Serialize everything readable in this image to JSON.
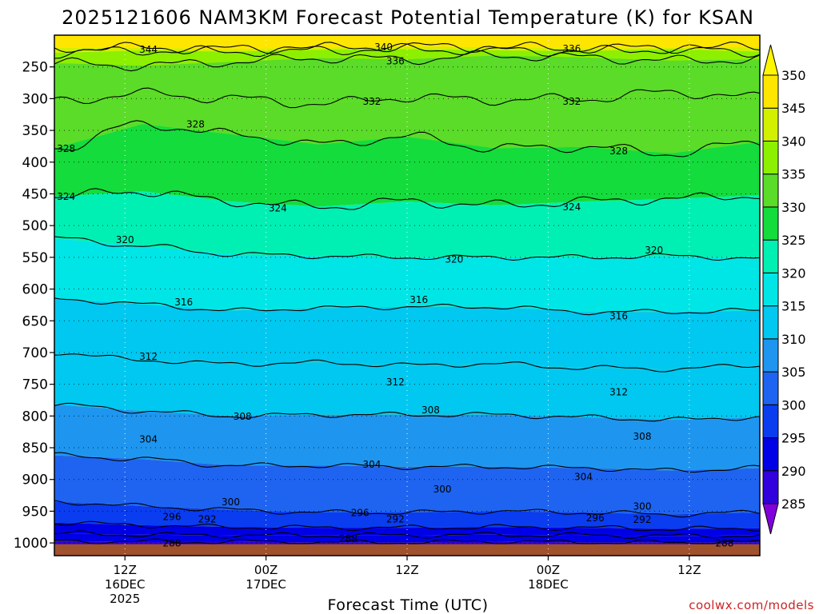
{
  "chart_data": {
    "type": "heatmap",
    "title": "2025121606 NAM3KM Forecast Potential Temperature (K) for KSAN",
    "xlabel": "Forecast Time (UTC)",
    "ylabel": "",
    "credit": "coolwx.com/models",
    "y_ticks": [
      "250",
      "300",
      "350",
      "400",
      "450",
      "500",
      "550",
      "600",
      "650",
      "700",
      "750",
      "800",
      "850",
      "900",
      "950",
      "1000"
    ],
    "ylim": [
      200,
      1020
    ],
    "x_ticks": [
      {
        "hour": 6,
        "lines": [
          "12Z",
          "16DEC",
          "2025"
        ]
      },
      {
        "hour": 18,
        "lines": [
          "00Z",
          "17DEC"
        ]
      },
      {
        "hour": 30,
        "lines": [
          "12Z",
          ""
        ]
      },
      {
        "hour": 42,
        "lines": [
          "00Z",
          "18DEC"
        ]
      },
      {
        "hour": 54,
        "lines": [
          "12Z",
          ""
        ]
      }
    ],
    "xlim": [
      0,
      60
    ],
    "colorbar": {
      "levels": [
        "285",
        "290",
        "295",
        "300",
        "305",
        "310",
        "315",
        "320",
        "325",
        "330",
        "335",
        "340",
        "345",
        "350"
      ],
      "colors": [
        "#8200dc",
        "#3200dc",
        "#0000e6",
        "#0a3cf0",
        "#1e64f0",
        "#1e96f0",
        "#00c8f0",
        "#00e6e6",
        "#00f0b4",
        "#14dc3c",
        "#5adc28",
        "#8cf000",
        "#d2f000",
        "#ffe600",
        "#fff700"
      ]
    },
    "isentropes": [
      {
        "theta": 344,
        "p": [
          220,
          220,
          222,
          220,
          218,
          219,
          221,
          220,
          219
        ]
      },
      {
        "theta": 340,
        "p": [
          228,
          224,
          226,
          223,
          222,
          224,
          225,
          222,
          226
        ]
      },
      {
        "theta": 336,
        "p": [
          244,
          248,
          242,
          236,
          238,
          232,
          235,
          240,
          238
        ]
      },
      {
        "theta": 332,
        "p": [
          304,
          292,
          300,
          308,
          298,
          302,
          300,
          290,
          298
        ]
      },
      {
        "theta": 328,
        "p": [
          378,
          340,
          356,
          372,
          360,
          378,
          376,
          386,
          368
        ]
      },
      {
        "theta": 324,
        "p": [
          454,
          446,
          462,
          470,
          462,
          468,
          462,
          458,
          452
        ]
      },
      {
        "theta": 320,
        "p": [
          520,
          532,
          545,
          548,
          550,
          550,
          550,
          548,
          552
        ]
      },
      {
        "theta": 316,
        "p": [
          615,
          624,
          634,
          630,
          628,
          628,
          636,
          636,
          634
        ]
      },
      {
        "theta": 312,
        "p": [
          700,
          712,
          718,
          716,
          720,
          718,
          724,
          726,
          720
        ]
      },
      {
        "theta": 308,
        "p": [
          782,
          792,
          800,
          798,
          798,
          798,
          802,
          806,
          802
        ]
      },
      {
        "theta": 304,
        "p": [
          862,
          868,
          878,
          878,
          880,
          880,
          882,
          886,
          882
        ]
      },
      {
        "theta": 300,
        "p": [
          935,
          942,
          948,
          952,
          952,
          950,
          952,
          955,
          952
        ]
      },
      {
        "theta": 296,
        "p": [
          968,
          972,
          975,
          976,
          976,
          975,
          976,
          978,
          977
        ]
      },
      {
        "theta": 292,
        "p": [
          985,
          987,
          988,
          988,
          988,
          987,
          988,
          989,
          988
        ]
      },
      {
        "theta": 288,
        "p": [
          997,
          998,
          998,
          999,
          999,
          998,
          999,
          999,
          999
        ]
      }
    ],
    "contour_labels": [
      {
        "text": "344",
        "hour": 8,
        "p": 222
      },
      {
        "text": "340",
        "hour": 28,
        "p": 218
      },
      {
        "text": "336",
        "hour": 44,
        "p": 221
      },
      {
        "text": "336",
        "hour": 29,
        "p": 240
      },
      {
        "text": "332",
        "hour": 27,
        "p": 304
      },
      {
        "text": "332",
        "hour": 44,
        "p": 304
      },
      {
        "text": "328",
        "hour": 1,
        "p": 378
      },
      {
        "text": "328",
        "hour": 12,
        "p": 340
      },
      {
        "text": "328",
        "hour": 48,
        "p": 382
      },
      {
        "text": "324",
        "hour": 1,
        "p": 454
      },
      {
        "text": "324",
        "hour": 19,
        "p": 472
      },
      {
        "text": "324",
        "hour": 44,
        "p": 470
      },
      {
        "text": "320",
        "hour": 6,
        "p": 522
      },
      {
        "text": "320",
        "hour": 34,
        "p": 553
      },
      {
        "text": "320",
        "hour": 51,
        "p": 538
      },
      {
        "text": "316",
        "hour": 11,
        "p": 620
      },
      {
        "text": "316",
        "hour": 31,
        "p": 616
      },
      {
        "text": "316",
        "hour": 48,
        "p": 642
      },
      {
        "text": "312",
        "hour": 8,
        "p": 706
      },
      {
        "text": "312",
        "hour": 29,
        "p": 746
      },
      {
        "text": "312",
        "hour": 48,
        "p": 762
      },
      {
        "text": "308",
        "hour": 16,
        "p": 800
      },
      {
        "text": "308",
        "hour": 32,
        "p": 790
      },
      {
        "text": "308",
        "hour": 50,
        "p": 832
      },
      {
        "text": "304",
        "hour": 8,
        "p": 836
      },
      {
        "text": "304",
        "hour": 27,
        "p": 876
      },
      {
        "text": "304",
        "hour": 45,
        "p": 895
      },
      {
        "text": "300",
        "hour": 15,
        "p": 935
      },
      {
        "text": "300",
        "hour": 33,
        "p": 915
      },
      {
        "text": "300",
        "hour": 50,
        "p": 942
      },
      {
        "text": "296",
        "hour": 10,
        "p": 958
      },
      {
        "text": "296",
        "hour": 26,
        "p": 952
      },
      {
        "text": "296",
        "hour": 46,
        "p": 960
      },
      {
        "text": "292",
        "hour": 13,
        "p": 962
      },
      {
        "text": "292",
        "hour": 29,
        "p": 962
      },
      {
        "text": "292",
        "hour": 50,
        "p": 963
      },
      {
        "text": "288",
        "hour": 10,
        "p": 1000
      },
      {
        "text": "288",
        "hour": 25,
        "p": 993
      },
      {
        "text": "288",
        "hour": 57,
        "p": 1000
      }
    ]
  },
  "colors": {
    "ground": "#a0522d",
    "frame": "#000000",
    "credit": "#cc2222"
  }
}
